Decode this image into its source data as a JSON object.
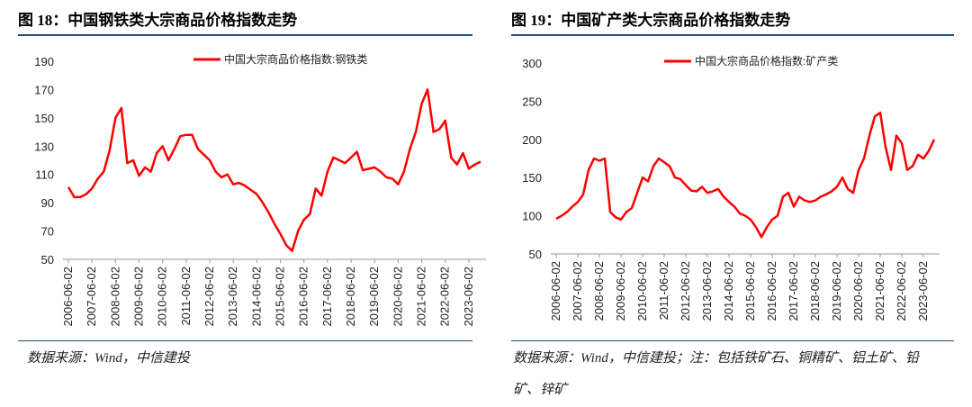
{
  "chart_data": [
    {
      "type": "line",
      "title": "图 18：中国钢铁类大宗商品价格指数走势",
      "source": "数据来源：Wind，中信建投",
      "x": [
        "2006-06-02",
        "2006-09-02",
        "2006-12-02",
        "2007-03-02",
        "2007-06-02",
        "2007-09-02",
        "2007-12-02",
        "2008-03-02",
        "2008-06-02",
        "2008-09-02",
        "2008-12-02",
        "2009-03-02",
        "2009-06-02",
        "2009-09-02",
        "2009-12-02",
        "2010-03-02",
        "2010-06-02",
        "2010-09-02",
        "2010-12-02",
        "2011-03-02",
        "2011-06-02",
        "2011-09-02",
        "2011-12-02",
        "2012-03-02",
        "2012-06-02",
        "2012-09-02",
        "2012-12-02",
        "2013-03-02",
        "2013-06-02",
        "2013-09-02",
        "2013-12-02",
        "2014-03-02",
        "2014-06-02",
        "2014-09-02",
        "2014-12-02",
        "2015-03-02",
        "2015-06-02",
        "2015-09-02",
        "2015-12-02",
        "2016-03-02",
        "2016-06-02",
        "2016-09-02",
        "2016-12-02",
        "2017-03-02",
        "2017-06-02",
        "2017-09-02",
        "2017-12-02",
        "2018-03-02",
        "2018-06-02",
        "2018-09-02",
        "2018-12-02",
        "2019-03-02",
        "2019-06-02",
        "2019-09-02",
        "2019-12-02",
        "2020-03-02",
        "2020-06-02",
        "2020-09-02",
        "2020-12-02",
        "2021-03-02",
        "2021-06-02",
        "2021-09-02",
        "2021-12-02",
        "2022-03-02",
        "2022-06-02",
        "2022-09-02",
        "2022-12-02",
        "2023-03-02",
        "2023-06-02",
        "2023-09-02",
        "2023-12-02"
      ],
      "series": [
        {
          "name": "中国大宗商品价格指数:钢铁类",
          "color": "#ff0000",
          "values": [
            101,
            94,
            94,
            96,
            100,
            107,
            112,
            127,
            150,
            157,
            118,
            120,
            109,
            115,
            112,
            125,
            130,
            120,
            128,
            137,
            138,
            138,
            128,
            124,
            120,
            112,
            108,
            110,
            103,
            104,
            102,
            99,
            96,
            90,
            83,
            75,
            68,
            60,
            56,
            70,
            78,
            82,
            100,
            95,
            112,
            122,
            120,
            118,
            122,
            126,
            113,
            114,
            115,
            112,
            108,
            107,
            103,
            112,
            128,
            140,
            160,
            170,
            140,
            142,
            148,
            122,
            117,
            125,
            114,
            117,
            119
          ]
        }
      ],
      "ylim": [
        50,
        190
      ],
      "yticks": [
        50,
        70,
        90,
        110,
        130,
        150,
        170,
        190
      ],
      "xticks": [
        "2006-06-02",
        "2007-06-02",
        "2008-06-02",
        "2009-06-02",
        "2010-06-02",
        "2011-06-02",
        "2012-06-02",
        "2013-06-02",
        "2014-06-02",
        "2015-06-02",
        "2016-06-02",
        "2017-06-02",
        "2018-06-02",
        "2019-06-02",
        "2020-06-02",
        "2021-06-02",
        "2022-06-02",
        "2023-06-02"
      ],
      "legend": "top"
    },
    {
      "type": "line",
      "title": "图 19：中国矿产类大宗商品价格指数走势",
      "source": "数据来源：Wind，中信建投；注：包括铁矿石、铜精矿、铝土矿、铅矿、锌矿",
      "x": [
        "2006-06-02",
        "2006-09-02",
        "2006-12-02",
        "2007-03-02",
        "2007-06-02",
        "2007-09-02",
        "2007-12-02",
        "2008-03-02",
        "2008-06-02",
        "2008-09-02",
        "2008-12-02",
        "2009-03-02",
        "2009-06-02",
        "2009-09-02",
        "2009-12-02",
        "2010-03-02",
        "2010-06-02",
        "2010-09-02",
        "2010-12-02",
        "2011-03-02",
        "2011-06-02",
        "2011-09-02",
        "2011-12-02",
        "2012-03-02",
        "2012-06-02",
        "2012-09-02",
        "2012-12-02",
        "2013-03-02",
        "2013-06-02",
        "2013-09-02",
        "2013-12-02",
        "2014-03-02",
        "2014-06-02",
        "2014-09-02",
        "2014-12-02",
        "2015-03-02",
        "2015-06-02",
        "2015-09-02",
        "2015-12-02",
        "2016-03-02",
        "2016-06-02",
        "2016-09-02",
        "2016-12-02",
        "2017-03-02",
        "2017-06-02",
        "2017-09-02",
        "2017-12-02",
        "2018-03-02",
        "2018-06-02",
        "2018-09-02",
        "2018-12-02",
        "2019-03-02",
        "2019-06-02",
        "2019-09-02",
        "2019-12-02",
        "2020-03-02",
        "2020-06-02",
        "2020-09-02",
        "2020-12-02",
        "2021-03-02",
        "2021-06-02",
        "2021-09-02",
        "2021-12-02",
        "2022-03-02",
        "2022-06-02",
        "2022-09-02",
        "2022-12-02",
        "2023-03-02",
        "2023-06-02",
        "2023-09-02",
        "2023-12-02"
      ],
      "series": [
        {
          "name": "中国大宗商品价格指数:矿产类",
          "color": "#ff0000",
          "values": [
            96,
            100,
            105,
            112,
            118,
            128,
            160,
            175,
            172,
            175,
            105,
            98,
            95,
            105,
            110,
            130,
            150,
            145,
            165,
            175,
            170,
            165,
            150,
            148,
            140,
            133,
            132,
            138,
            130,
            132,
            135,
            125,
            118,
            112,
            103,
            100,
            95,
            85,
            72,
            85,
            95,
            100,
            125,
            130,
            112,
            125,
            120,
            118,
            120,
            125,
            128,
            132,
            138,
            150,
            135,
            130,
            160,
            175,
            205,
            230,
            235,
            190,
            160,
            205,
            195,
            160,
            165,
            180,
            175,
            185,
            200
          ]
        }
      ],
      "ylim": [
        50,
        300
      ],
      "yticks": [
        50,
        100,
        150,
        200,
        250,
        300
      ],
      "xticks": [
        "2006-06-02",
        "2007-06-02",
        "2008-06-02",
        "2009-06-02",
        "2010-06-02",
        "2011-06-02",
        "2012-06-02",
        "2013-06-02",
        "2014-06-02",
        "2015-06-02",
        "2016-06-02",
        "2017-06-02",
        "2018-06-02",
        "2019-06-02",
        "2020-06-02",
        "2021-06-02",
        "2022-06-02",
        "2023-06-02"
      ],
      "legend": "top"
    }
  ]
}
